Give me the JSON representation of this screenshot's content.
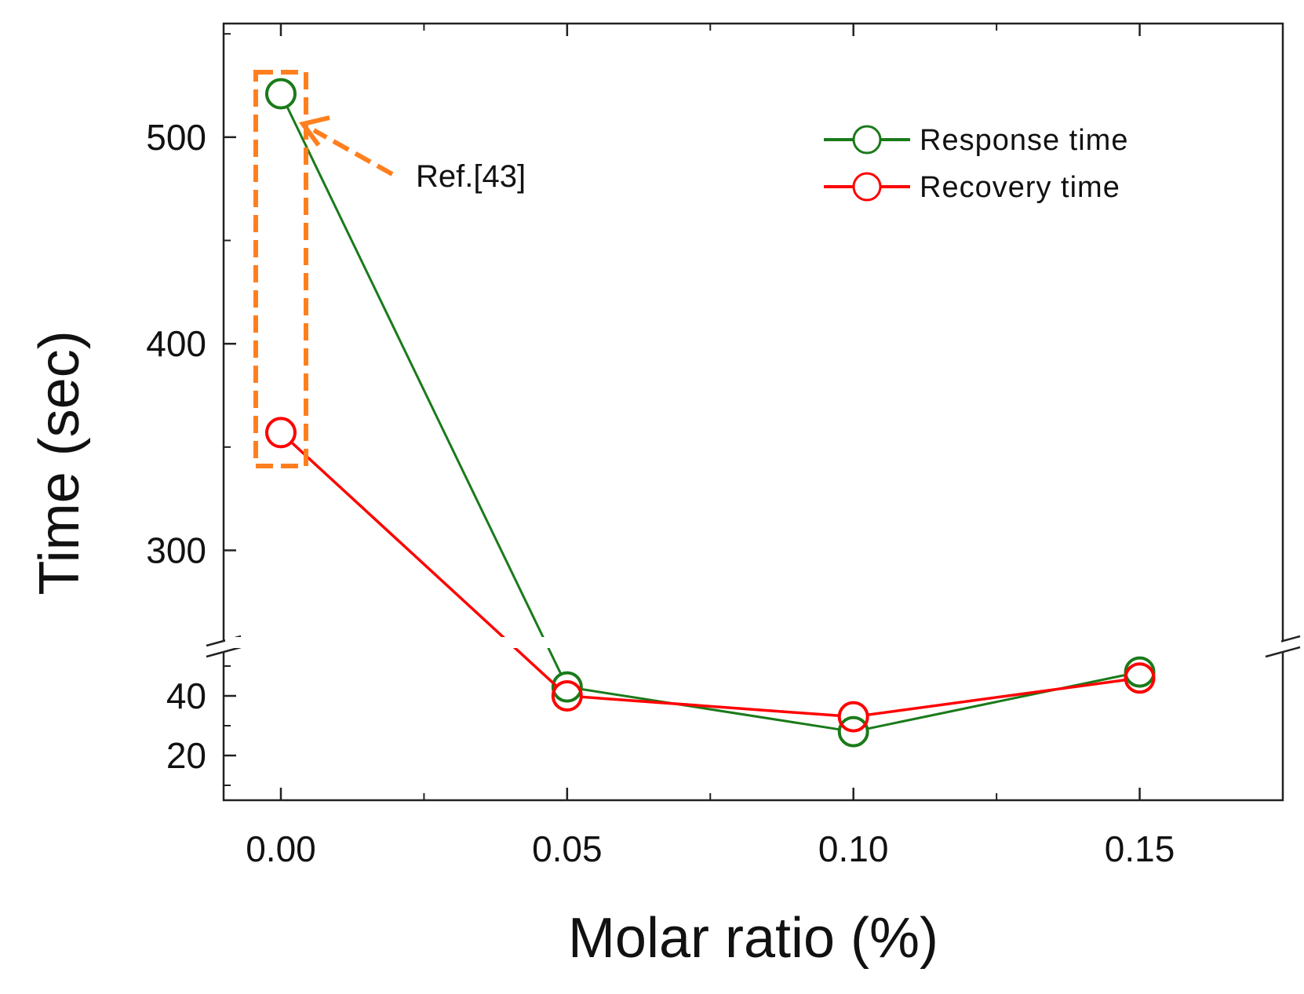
{
  "chart_data": {
    "type": "line",
    "title": "",
    "xlabel": "Molar ratio (%)",
    "ylabel": "Time (sec)",
    "x": [
      0.0,
      0.05,
      0.1,
      0.15
    ],
    "x_tick_labels": [
      "0.00",
      "0.05",
      "0.10",
      "0.15"
    ],
    "xlim": [
      -0.01,
      0.175
    ],
    "y_axis_break": true,
    "ylim_lower": [
      5,
      55
    ],
    "ylim_upper": [
      255,
      555
    ],
    "y_tick_labels_lower": [
      "20",
      "40"
    ],
    "y_tick_labels_upper": [
      "300",
      "400",
      "500"
    ],
    "series": [
      {
        "name": "Response time",
        "color": "#1a7a1a",
        "marker": "open-circle",
        "values": [
          521,
          43,
          28,
          48
        ]
      },
      {
        "name": "Recovery time",
        "color": "#ff0000",
        "marker": "open-circle",
        "values": [
          357,
          40,
          33,
          46
        ]
      }
    ],
    "legend_position": "top-right",
    "annotation": {
      "text": "Ref.[43]",
      "color": "#ff7f1e",
      "target_x": 0.0
    }
  }
}
